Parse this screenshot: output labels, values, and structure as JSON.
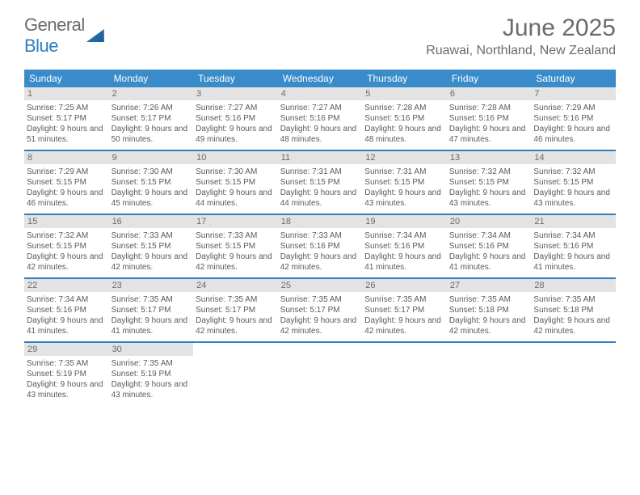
{
  "logo": {
    "text1": "General",
    "text2": "Blue"
  },
  "title": "June 2025",
  "location": "Ruawai, Northland, New Zealand",
  "colors": {
    "header_blue": "#3a8bc9",
    "border_blue": "#2f7ec2",
    "daynum_bg": "#e3e3e3",
    "text_gray": "#6b6b6b",
    "body_text": "#5a5a5a",
    "background": "#ffffff"
  },
  "weekdays": [
    "Sunday",
    "Monday",
    "Tuesday",
    "Wednesday",
    "Thursday",
    "Friday",
    "Saturday"
  ],
  "weeks": [
    [
      {
        "n": "1",
        "sr": "7:25 AM",
        "ss": "5:17 PM",
        "dl": "9 hours and 51 minutes."
      },
      {
        "n": "2",
        "sr": "7:26 AM",
        "ss": "5:17 PM",
        "dl": "9 hours and 50 minutes."
      },
      {
        "n": "3",
        "sr": "7:27 AM",
        "ss": "5:16 PM",
        "dl": "9 hours and 49 minutes."
      },
      {
        "n": "4",
        "sr": "7:27 AM",
        "ss": "5:16 PM",
        "dl": "9 hours and 48 minutes."
      },
      {
        "n": "5",
        "sr": "7:28 AM",
        "ss": "5:16 PM",
        "dl": "9 hours and 48 minutes."
      },
      {
        "n": "6",
        "sr": "7:28 AM",
        "ss": "5:16 PM",
        "dl": "9 hours and 47 minutes."
      },
      {
        "n": "7",
        "sr": "7:29 AM",
        "ss": "5:16 PM",
        "dl": "9 hours and 46 minutes."
      }
    ],
    [
      {
        "n": "8",
        "sr": "7:29 AM",
        "ss": "5:15 PM",
        "dl": "9 hours and 46 minutes."
      },
      {
        "n": "9",
        "sr": "7:30 AM",
        "ss": "5:15 PM",
        "dl": "9 hours and 45 minutes."
      },
      {
        "n": "10",
        "sr": "7:30 AM",
        "ss": "5:15 PM",
        "dl": "9 hours and 44 minutes."
      },
      {
        "n": "11",
        "sr": "7:31 AM",
        "ss": "5:15 PM",
        "dl": "9 hours and 44 minutes."
      },
      {
        "n": "12",
        "sr": "7:31 AM",
        "ss": "5:15 PM",
        "dl": "9 hours and 43 minutes."
      },
      {
        "n": "13",
        "sr": "7:32 AM",
        "ss": "5:15 PM",
        "dl": "9 hours and 43 minutes."
      },
      {
        "n": "14",
        "sr": "7:32 AM",
        "ss": "5:15 PM",
        "dl": "9 hours and 43 minutes."
      }
    ],
    [
      {
        "n": "15",
        "sr": "7:32 AM",
        "ss": "5:15 PM",
        "dl": "9 hours and 42 minutes."
      },
      {
        "n": "16",
        "sr": "7:33 AM",
        "ss": "5:15 PM",
        "dl": "9 hours and 42 minutes."
      },
      {
        "n": "17",
        "sr": "7:33 AM",
        "ss": "5:15 PM",
        "dl": "9 hours and 42 minutes."
      },
      {
        "n": "18",
        "sr": "7:33 AM",
        "ss": "5:16 PM",
        "dl": "9 hours and 42 minutes."
      },
      {
        "n": "19",
        "sr": "7:34 AM",
        "ss": "5:16 PM",
        "dl": "9 hours and 41 minutes."
      },
      {
        "n": "20",
        "sr": "7:34 AM",
        "ss": "5:16 PM",
        "dl": "9 hours and 41 minutes."
      },
      {
        "n": "21",
        "sr": "7:34 AM",
        "ss": "5:16 PM",
        "dl": "9 hours and 41 minutes."
      }
    ],
    [
      {
        "n": "22",
        "sr": "7:34 AM",
        "ss": "5:16 PM",
        "dl": "9 hours and 41 minutes."
      },
      {
        "n": "23",
        "sr": "7:35 AM",
        "ss": "5:17 PM",
        "dl": "9 hours and 41 minutes."
      },
      {
        "n": "24",
        "sr": "7:35 AM",
        "ss": "5:17 PM",
        "dl": "9 hours and 42 minutes."
      },
      {
        "n": "25",
        "sr": "7:35 AM",
        "ss": "5:17 PM",
        "dl": "9 hours and 42 minutes."
      },
      {
        "n": "26",
        "sr": "7:35 AM",
        "ss": "5:17 PM",
        "dl": "9 hours and 42 minutes."
      },
      {
        "n": "27",
        "sr": "7:35 AM",
        "ss": "5:18 PM",
        "dl": "9 hours and 42 minutes."
      },
      {
        "n": "28",
        "sr": "7:35 AM",
        "ss": "5:18 PM",
        "dl": "9 hours and 42 minutes."
      }
    ],
    [
      {
        "n": "29",
        "sr": "7:35 AM",
        "ss": "5:19 PM",
        "dl": "9 hours and 43 minutes."
      },
      {
        "n": "30",
        "sr": "7:35 AM",
        "ss": "5:19 PM",
        "dl": "9 hours and 43 minutes."
      },
      null,
      null,
      null,
      null,
      null
    ]
  ],
  "labels": {
    "sunrise": "Sunrise: ",
    "sunset": "Sunset: ",
    "daylight": "Daylight: "
  }
}
